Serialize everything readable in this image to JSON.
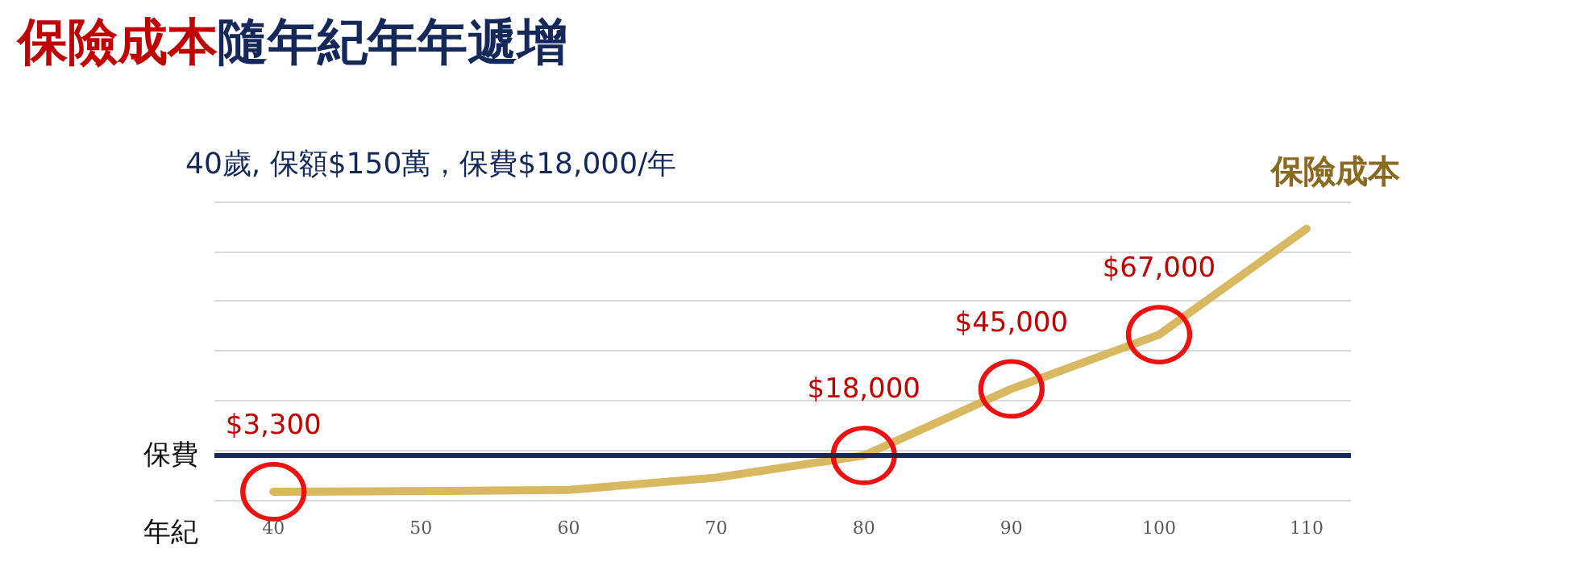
{
  "chart_data": {
    "type": "line",
    "title": "保險成本隨年紀年年遞增",
    "subtitle": "40歲, 保額$150萬，保費$18,000/年",
    "xlabel": "年紀",
    "x": [
      40,
      50,
      60,
      70,
      80,
      90,
      100,
      110
    ],
    "xlim": [
      36,
      113
    ],
    "xticks": [
      40,
      50,
      60,
      70,
      80,
      90,
      100,
      110
    ],
    "series": [
      {
        "name": "保險成本",
        "color": "#d9b862",
        "values": [
          3300,
          3500,
          4000,
          9000,
          18000,
          45000,
          67000,
          110000
        ],
        "value_labels": [
          "$3,300",
          null,
          null,
          null,
          "$18,000",
          "$45,000",
          "$67,000",
          null
        ]
      }
    ],
    "ref_lines": [
      {
        "axis": "y",
        "value": 18000,
        "label": "保費",
        "color": "#14285a"
      }
    ],
    "tick_labels": "x",
    "grid": "y",
    "legend": false,
    "line_style": "solid"
  }
}
